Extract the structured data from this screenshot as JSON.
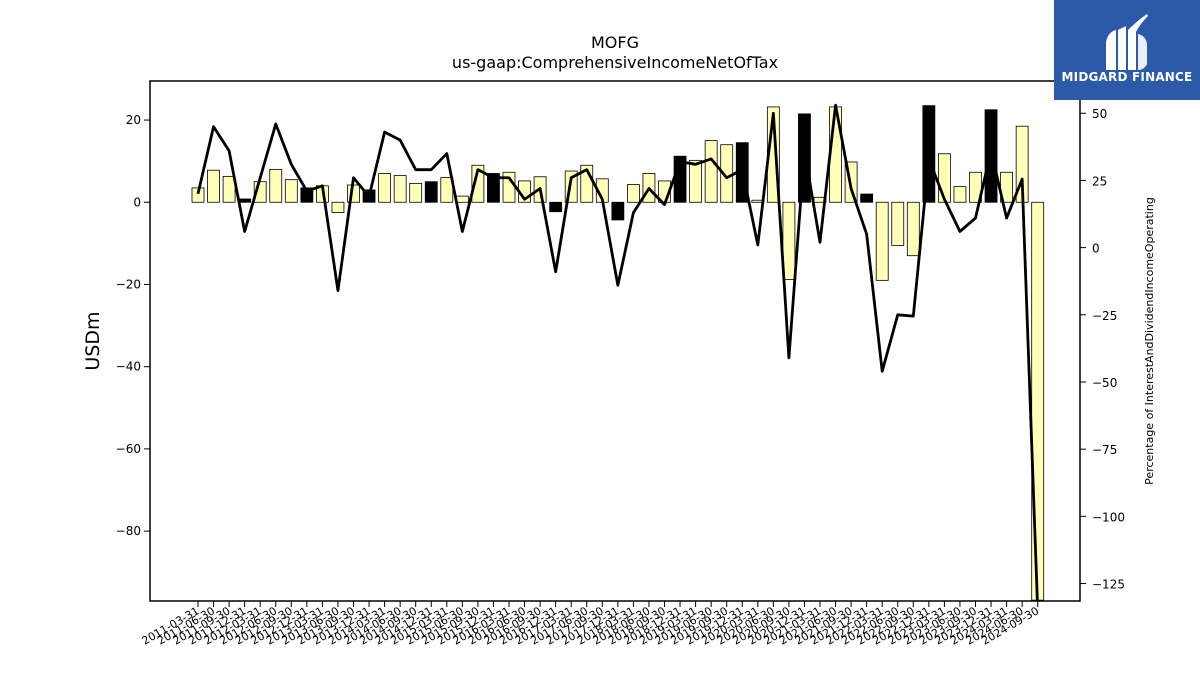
{
  "chart_data": {
    "type": "bar",
    "title": "MOFG",
    "subtitle": "us-gaap:ComprehensiveIncomeNetOfTax",
    "ylabel": "USDm",
    "y2label": "Percentage of InterestAndDividendIncomeOperating",
    "ylim": [
      -97,
      29.5
    ],
    "y2lim": [
      -131.5,
      62
    ],
    "yticks": [
      20,
      0,
      -20,
      -40,
      -60,
      -80
    ],
    "y2ticks": [
      50,
      25,
      0,
      -25,
      -50,
      -75,
      -100,
      -125
    ],
    "categories": [
      "2011-03-31",
      "2011-06-30",
      "2011-09-30",
      "2011-12-31",
      "2012-03-31",
      "2012-06-30",
      "2012-09-30",
      "2012-12-31",
      "2013-03-31",
      "2013-06-30",
      "2013-09-30",
      "2013-12-31",
      "2014-03-31",
      "2014-06-30",
      "2014-09-30",
      "2014-12-31",
      "2015-03-31",
      "2015-06-30",
      "2015-09-30",
      "2015-12-31",
      "2016-03-31",
      "2016-06-30",
      "2016-09-30",
      "2016-12-31",
      "2017-03-31",
      "2017-06-30",
      "2017-09-30",
      "2017-12-31",
      "2018-03-31",
      "2018-06-30",
      "2018-09-30",
      "2018-12-31",
      "2019-03-31",
      "2019-06-30",
      "2019-09-30",
      "2019-12-31",
      "2020-03-31",
      "2020-06-30",
      "2020-09-30",
      "2020-12-31",
      "2021-03-31",
      "2021-06-30",
      "2021-09-30",
      "2021-12-31",
      "2022-03-31",
      "2022-06-30",
      "2022-09-30",
      "2022-12-31",
      "2023-03-31",
      "2023-06-30",
      "2023-09-30",
      "2023-12-31",
      "2024-03-31",
      "2024-06-30",
      "2024-09-30"
    ],
    "series": [
      {
        "type": "bar",
        "values": [
          3.5,
          7.8,
          6.3,
          0.8,
          5.0,
          8.0,
          5.5,
          3.5,
          4.0,
          -2.5,
          4.2,
          3.0,
          7.0,
          6.5,
          4.6,
          5.0,
          6.0,
          1.5,
          9.0,
          7.0,
          7.3,
          5.2,
          6.2,
          -2.3,
          7.6,
          9.0,
          5.7,
          -4.3,
          4.3,
          7.0,
          5.2,
          11.2,
          10.2,
          15.0,
          14.0,
          14.5,
          0.5,
          23.2,
          -18.8,
          21.5,
          1.2,
          23.2,
          9.8,
          2.0,
          -19.0,
          -10.5,
          -13.0,
          23.5,
          11.8,
          3.8,
          7.3,
          22.5,
          7.3,
          18.5,
          -96.8
        ],
        "colors": [
          "#ffffb8",
          "#ffffb8",
          "#ffffb8",
          "#000000",
          "#ffffb8",
          "#ffffb8",
          "#ffffb8",
          "#000000",
          "#ffffb8",
          "#ffffb8",
          "#ffffb8",
          "#000000",
          "#ffffb8",
          "#ffffb8",
          "#ffffb8",
          "#000000",
          "#ffffb8",
          "#ffffb8",
          "#ffffb8",
          "#000000",
          "#ffffb8",
          "#ffffb8",
          "#ffffb8",
          "#000000",
          "#ffffb8",
          "#ffffb8",
          "#ffffb8",
          "#000000",
          "#ffffb8",
          "#ffffb8",
          "#ffffb8",
          "#000000",
          "#ffffb8",
          "#ffffb8",
          "#ffffb8",
          "#000000",
          "#ffffb8",
          "#ffffb8",
          "#ffffb8",
          "#000000",
          "#ffffb8",
          "#ffffb8",
          "#ffffb8",
          "#000000",
          "#ffffb8",
          "#ffffb8",
          "#ffffb8",
          "#000000",
          "#ffffb8",
          "#ffffb8",
          "#ffffb8",
          "#000000",
          "#ffffb8",
          "#ffffb8",
          "#ffffb8"
        ]
      },
      {
        "type": "line",
        "axis": "right",
        "values": [
          20,
          45,
          36,
          6,
          26,
          46,
          31,
          21,
          23,
          -16,
          26,
          19,
          43,
          40,
          29,
          29,
          35,
          6,
          29,
          26,
          26,
          18,
          22,
          -9,
          26,
          29,
          18,
          -14,
          13,
          22,
          16,
          32,
          31,
          33,
          26,
          29,
          1,
          50,
          -41,
          36,
          2,
          53,
          22,
          5,
          -46,
          -25,
          -25.5,
          33,
          18,
          6,
          11,
          36,
          11,
          25.5,
          -135
        ]
      }
    ]
  },
  "logo": {
    "text": "MIDGARD FINANCE",
    "bg_color": "#2a5aa8"
  }
}
